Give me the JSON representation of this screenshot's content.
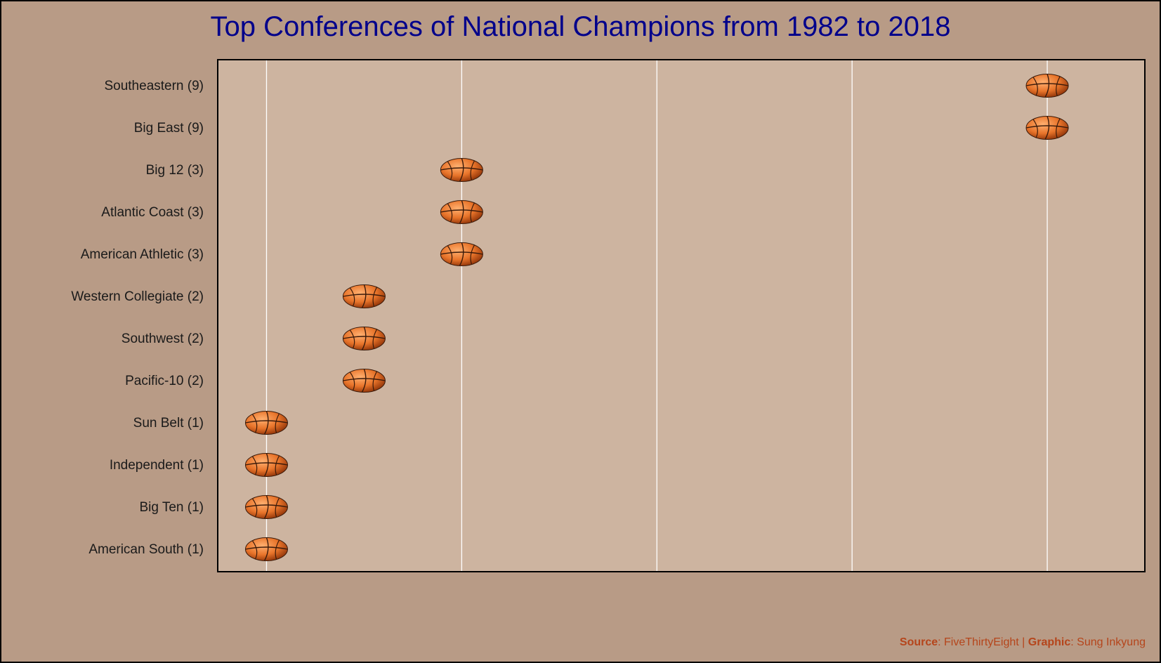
{
  "chart_data": {
    "type": "scatter",
    "title": "Top Conferences of National Champions from 1982 to 2018",
    "xlabel": "",
    "ylabel": "",
    "xlim": [
      0.5,
      10
    ],
    "grid_x": [
      1,
      3,
      5,
      7,
      9
    ],
    "marker": "basketball-icon",
    "categories": [
      "Southeastern (9)",
      "Big East (9)",
      "Big 12 (3)",
      "Atlantic Coast (3)",
      "American Athletic (3)",
      "Western Collegiate (2)",
      "Southwest (2)",
      "Pacific-10 (2)",
      "Sun Belt (1)",
      "Independent (1)",
      "Big Ten (1)",
      "American South (1)"
    ],
    "values": [
      9,
      9,
      3,
      3,
      3,
      2,
      2,
      2,
      1,
      1,
      1,
      1
    ]
  },
  "caption": {
    "source_label": "Source",
    "source_value": ": FiveThirtyEight | ",
    "graphic_label": "Graphic",
    "graphic_value": ": Sung Inkyung"
  },
  "colors": {
    "background": "#b89b86",
    "panel": "#cdb4a0",
    "title": "#00008b",
    "caption": "#b5451b",
    "grid": "#ffffff",
    "ball": "#e8742a",
    "ball_seam": "#3a1a0a"
  }
}
